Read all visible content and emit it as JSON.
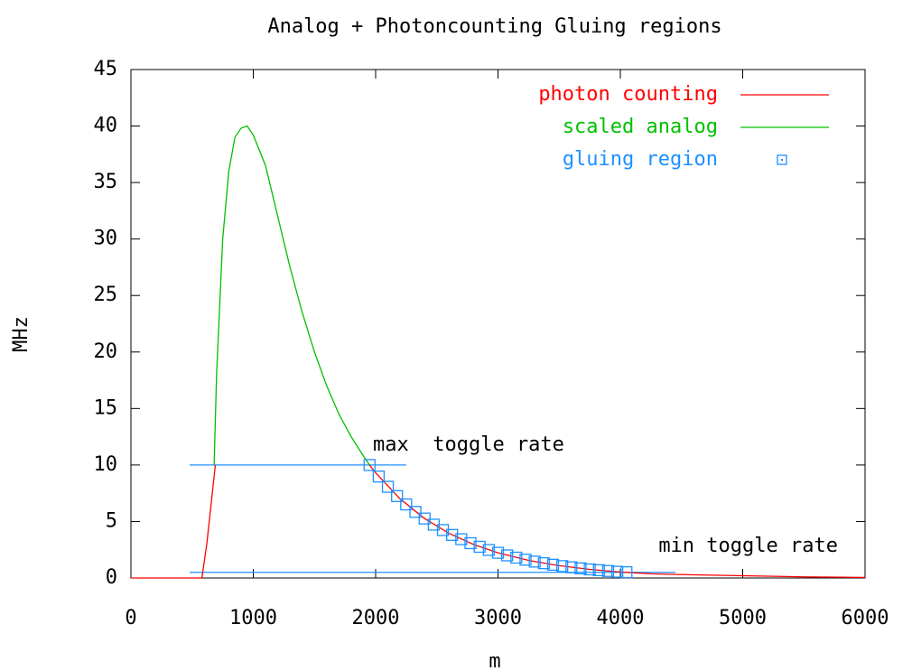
{
  "chart_data": {
    "type": "line",
    "title": "Analog + Photoncounting Gluing regions",
    "x_label": "m",
    "y_label": "MHz",
    "xlim": [
      0,
      6000
    ],
    "ylim": [
      0,
      45
    ],
    "xticks": [
      0,
      1000,
      2000,
      3000,
      4000,
      5000,
      6000
    ],
    "yticks": [
      0,
      5,
      10,
      15,
      20,
      25,
      30,
      35,
      40,
      45
    ],
    "legend": "top-right",
    "series": [
      {
        "name": "photon counting",
        "color": "#ff0000",
        "style": "line",
        "x": [
          0,
          500,
          580,
          620,
          660,
          690,
          1300,
          1950,
          2000,
          2200,
          2400,
          2600,
          2800,
          3000,
          3250,
          3500,
          3750,
          4000,
          4250,
          4500,
          5000,
          5500,
          6000
        ],
        "values": [
          0,
          0,
          0,
          3,
          7,
          10,
          null,
          10,
          9.31,
          7.0,
          5.26,
          3.95,
          2.97,
          2.23,
          1.56,
          1.09,
          0.76,
          0.53,
          0.37,
          0.3,
          0.2,
          0.1,
          0.05
        ]
      },
      {
        "name": "scaled analog",
        "color": "#00c000",
        "style": "line",
        "x": [
          680,
          700,
          750,
          800,
          850,
          900,
          950,
          1000,
          1100,
          1200,
          1300,
          1400,
          1500,
          1600,
          1700,
          1800,
          1900,
          1950
        ],
        "values": [
          10,
          18,
          30,
          36,
          39,
          39.8,
          40,
          39.2,
          36.5,
          32,
          27.5,
          23.5,
          20,
          17,
          14.5,
          12.5,
          10.8,
          10
        ]
      },
      {
        "name": "gluing region",
        "color": "#1e90ff",
        "style": "square",
        "x": [
          1950,
          2025,
          2100,
          2175,
          2250,
          2325,
          2400,
          2475,
          2550,
          2625,
          2700,
          2775,
          2850,
          2925,
          3000,
          3075,
          3150,
          3225,
          3300,
          3375,
          3450,
          3525,
          3600,
          3675,
          3750,
          3825,
          3900,
          3975,
          4050
        ],
        "values": [
          10,
          8.98,
          8.07,
          7.25,
          6.51,
          5.85,
          5.26,
          4.72,
          4.24,
          3.81,
          3.43,
          3.08,
          2.76,
          2.48,
          2.23,
          2.0,
          1.8,
          1.62,
          1.45,
          1.31,
          1.17,
          1.05,
          0.95,
          0.85,
          0.76,
          0.69,
          0.62,
          0.55,
          0.51
        ]
      }
    ],
    "hlines": [
      {
        "label": "max  toggle rate",
        "value": 10,
        "xstart": 480,
        "xend": 2250,
        "color": "#1e90ff"
      },
      {
        "label": "min toggle rate",
        "value": 0.5,
        "xstart": 480,
        "xend": 4450,
        "color": "#1e90ff"
      }
    ]
  }
}
